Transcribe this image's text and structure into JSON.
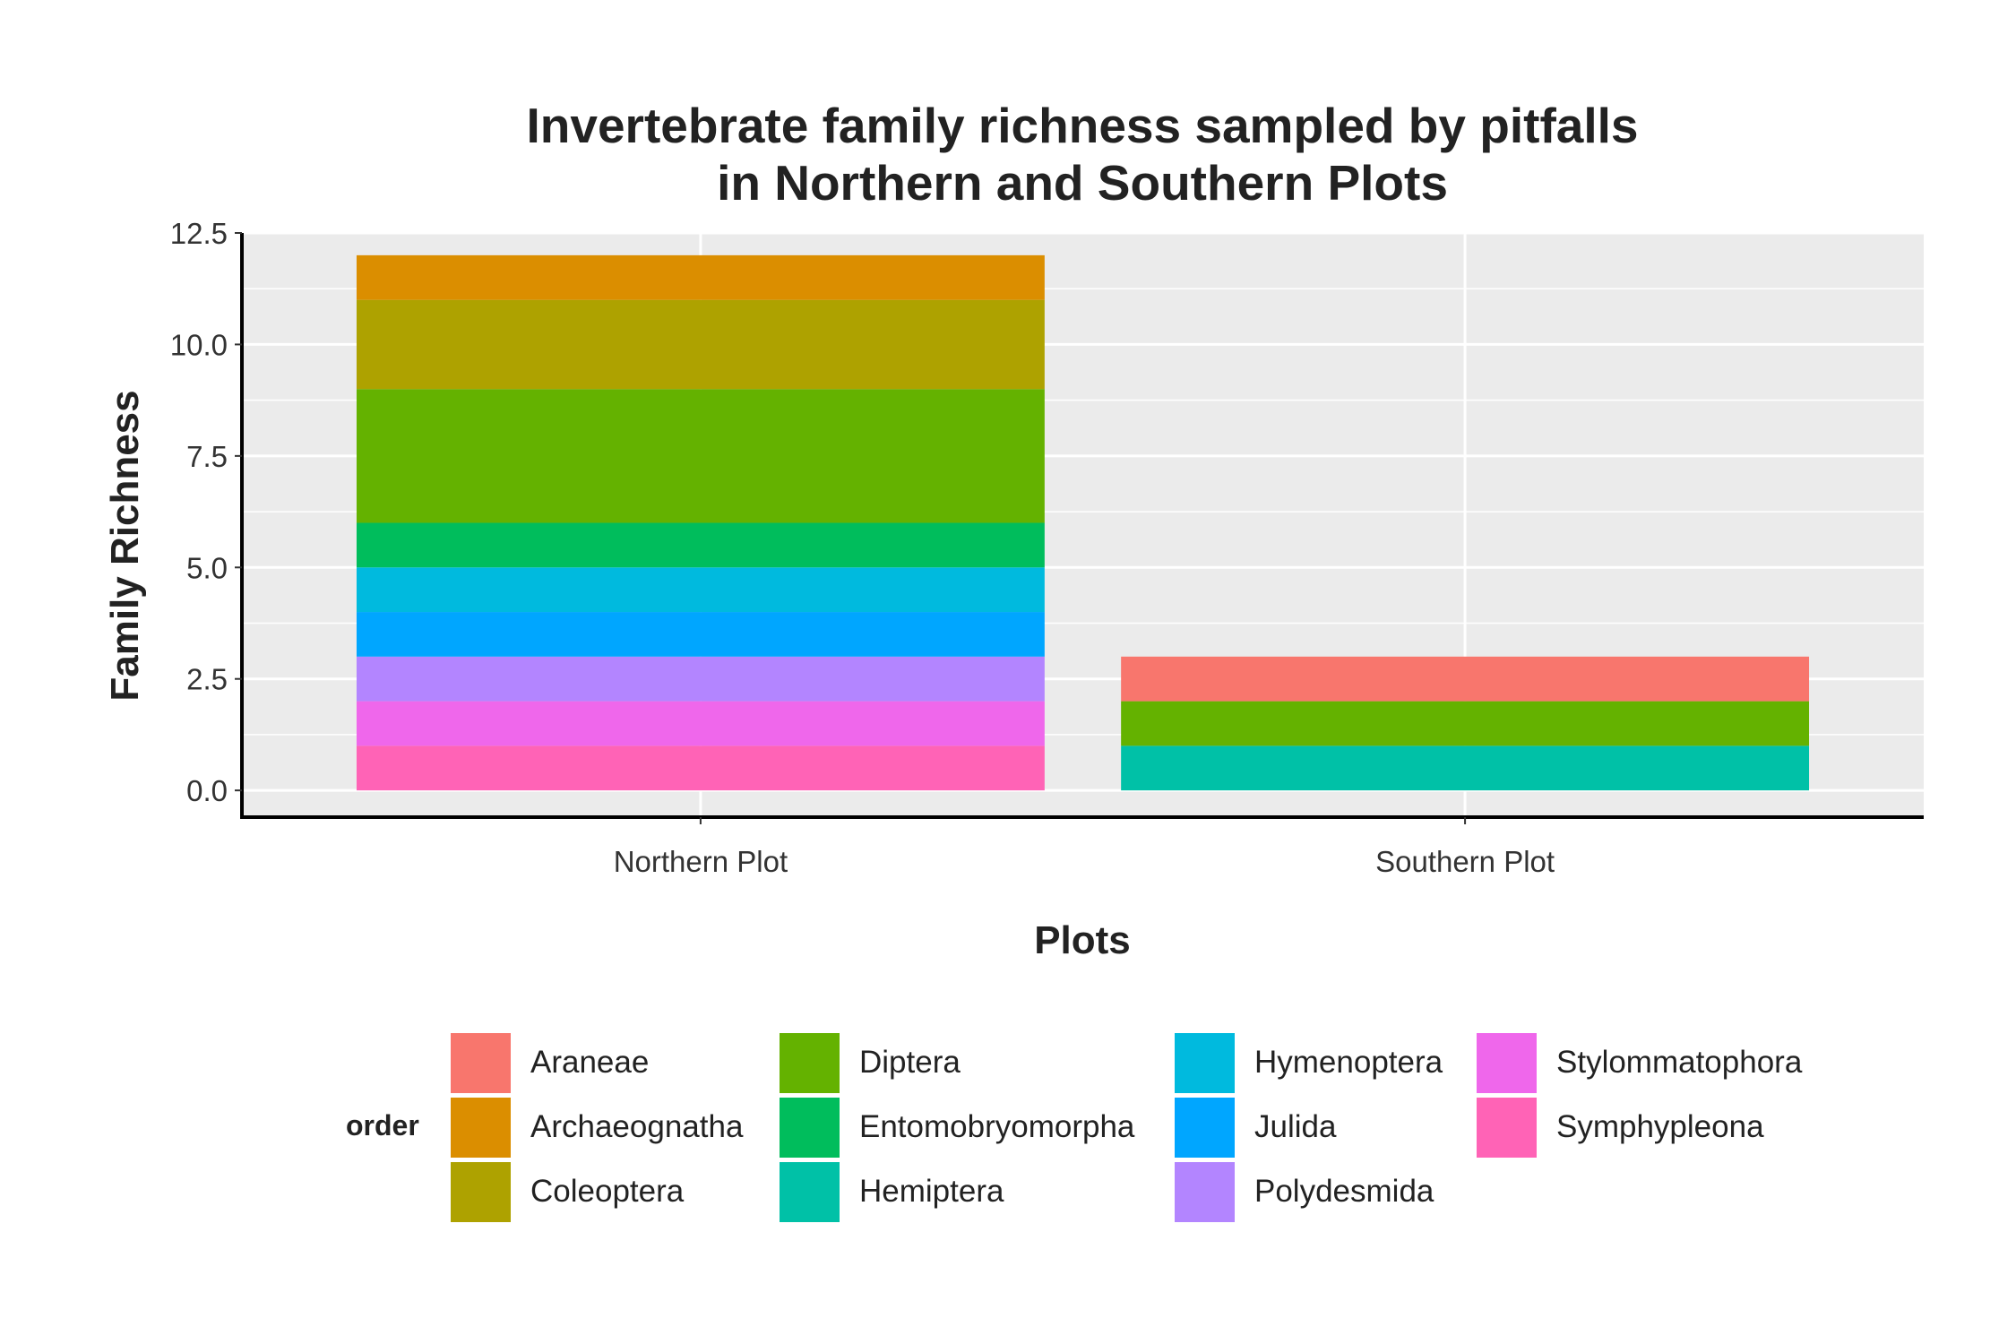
{
  "chart_data": {
    "type": "bar",
    "stacked": true,
    "title_lines": [
      "Invertebrate family richness sampled by pitfalls",
      "in Northern and Southern Plots"
    ],
    "xlabel": "Plots",
    "ylabel": "Family Richness",
    "ylim": [
      -0.6,
      12.5
    ],
    "y_ticks": [
      "0.0",
      "2.5",
      "5.0",
      "7.5",
      "10.0",
      "12.5"
    ],
    "grid": true,
    "legend_placement": "bottom",
    "legend_title": "order",
    "categories": [
      "Northern Plot",
      "Southern Plot"
    ],
    "series": [
      {
        "name": "Araneae",
        "color": "#F8766D",
        "values": [
          0,
          1
        ]
      },
      {
        "name": "Archaeognatha",
        "color": "#DB8E00",
        "values": [
          1,
          0
        ]
      },
      {
        "name": "Coleoptera",
        "color": "#AEA200",
        "values": [
          2,
          0
        ]
      },
      {
        "name": "Diptera",
        "color": "#64B200",
        "values": [
          3,
          1
        ]
      },
      {
        "name": "Entomobryomorpha",
        "color": "#00BD5C",
        "values": [
          1,
          0
        ]
      },
      {
        "name": "Hemiptera",
        "color": "#00C1A7",
        "values": [
          0,
          1
        ]
      },
      {
        "name": "Hymenoptera",
        "color": "#00BADE",
        "values": [
          1,
          0
        ]
      },
      {
        "name": "Julida",
        "color": "#00A6FF",
        "values": [
          1,
          0
        ]
      },
      {
        "name": "Polydesmida",
        "color": "#B385FF",
        "values": [
          1,
          0
        ]
      },
      {
        "name": "Stylommatophora",
        "color": "#EF67EB",
        "values": [
          1,
          0
        ]
      },
      {
        "name": "Symphypleona",
        "color": "#FF63B6",
        "values": [
          1,
          0
        ]
      }
    ]
  }
}
